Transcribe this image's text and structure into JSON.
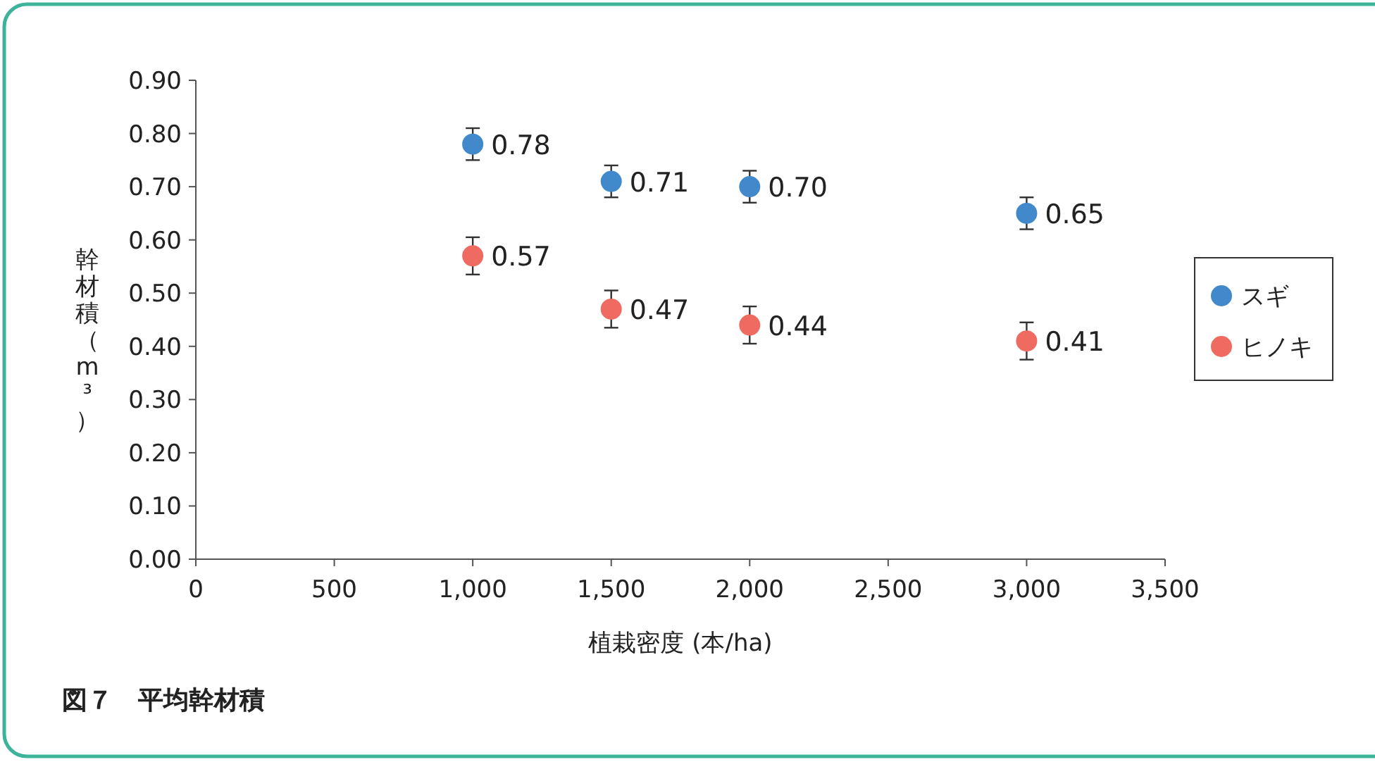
{
  "chart_data": {
    "type": "scatter",
    "xlabel": "植栽密度 (本/ha)",
    "ylabel": "幹材積（m³）",
    "x": [
      1000,
      1500,
      2000,
      3000
    ],
    "series": [
      {
        "name": "スギ",
        "color": "#4189cb",
        "values": [
          0.78,
          0.71,
          0.7,
          0.65
        ],
        "errors": [
          0.03,
          0.03,
          0.03,
          0.03
        ],
        "value_labels": [
          "0.78",
          "0.71",
          "0.70",
          "0.65"
        ]
      },
      {
        "name": "ヒノキ",
        "color": "#ef6b62",
        "values": [
          0.57,
          0.47,
          0.44,
          0.41
        ],
        "errors": [
          0.035,
          0.035,
          0.035,
          0.035
        ],
        "value_labels": [
          "0.57",
          "0.47",
          "0.44",
          "0.41"
        ]
      }
    ],
    "xlim": [
      0,
      3500
    ],
    "xticks": [
      {
        "value": 0,
        "label": "0"
      },
      {
        "value": 500,
        "label": "500"
      },
      {
        "value": 1000,
        "label": "1,000"
      },
      {
        "value": 1500,
        "label": "1,500"
      },
      {
        "value": 2000,
        "label": "2,000"
      },
      {
        "value": 2500,
        "label": "2,500"
      },
      {
        "value": 3000,
        "label": "3,000"
      },
      {
        "value": 3500,
        "label": "3,500"
      }
    ],
    "ylim": [
      0,
      0.9
    ],
    "yticks": [
      {
        "value": 0,
        "label": "0.00"
      },
      {
        "value": 0.1,
        "label": "0.10"
      },
      {
        "value": 0.2,
        "label": "0.20"
      },
      {
        "value": 0.3,
        "label": "0.30"
      },
      {
        "value": 0.4,
        "label": "0.40"
      },
      {
        "value": 0.5,
        "label": "0.50"
      },
      {
        "value": 0.6,
        "label": "0.60"
      },
      {
        "value": 0.7,
        "label": "0.70"
      },
      {
        "value": 0.8,
        "label": "0.80"
      },
      {
        "value": 0.9,
        "label": "0.90"
      }
    ],
    "grid": false,
    "legend": "right",
    "marker": "circle",
    "annotations": [
      "図７　平均幹材積"
    ]
  }
}
